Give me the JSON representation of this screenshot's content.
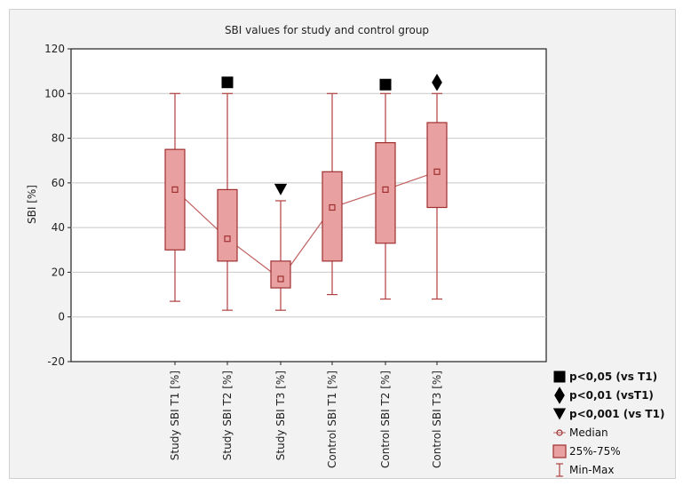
{
  "chart_data": {
    "type": "box",
    "title": "SBI values for study and control group",
    "ylabel": "SBI [%]",
    "xlabel": "",
    "ylim": [
      -20,
      120
    ],
    "yticks": [
      "-20",
      "0",
      "20",
      "40",
      "60",
      "80",
      "100",
      "120"
    ],
    "grid": true,
    "categories": [
      "Study SBI T1 [%]",
      "Study SBI T2 [%]",
      "Study SBI T3 [%]",
      "Control SBI T1 [%]",
      "Control SBI T2 [%]",
      "Control SBI T3 [%]"
    ],
    "median": [
      57,
      35,
      17,
      49,
      57,
      65
    ],
    "q1": [
      30,
      25,
      13,
      25,
      33,
      49
    ],
    "q3": [
      75,
      57,
      25,
      65,
      78,
      87
    ],
    "min": [
      7,
      3,
      3,
      10,
      8,
      8
    ],
    "max": [
      100,
      100,
      52,
      100,
      100,
      100
    ],
    "markers": [
      {
        "category_index": 1,
        "symbol": "square",
        "value": 105
      },
      {
        "category_index": 2,
        "symbol": "triangle-down",
        "value": 57
      },
      {
        "category_index": 4,
        "symbol": "square",
        "value": 104
      },
      {
        "category_index": 5,
        "symbol": "diamond",
        "value": 105
      }
    ],
    "legend": [
      {
        "symbol": "square",
        "label": "p<0,05 (vs T1)"
      },
      {
        "symbol": "diamond",
        "label": "p<0,01 (vsT1)"
      },
      {
        "symbol": "triangle-down",
        "label": "p<0,001 (vs T1)"
      },
      {
        "symbol": "median",
        "label": "Median"
      },
      {
        "symbol": "box",
        "label": "25%-75%"
      },
      {
        "symbol": "whisker",
        "label": "Min-Max"
      }
    ],
    "legend_position": "bottom-right",
    "colors": {
      "box_fill": "#e8a0a0",
      "box_stroke": "#a03030",
      "whisker": "#b04040",
      "median_line": "#c06060",
      "marker": "#000000",
      "plot_bg": "#ffffff",
      "grid": "#c8c8c8"
    }
  }
}
